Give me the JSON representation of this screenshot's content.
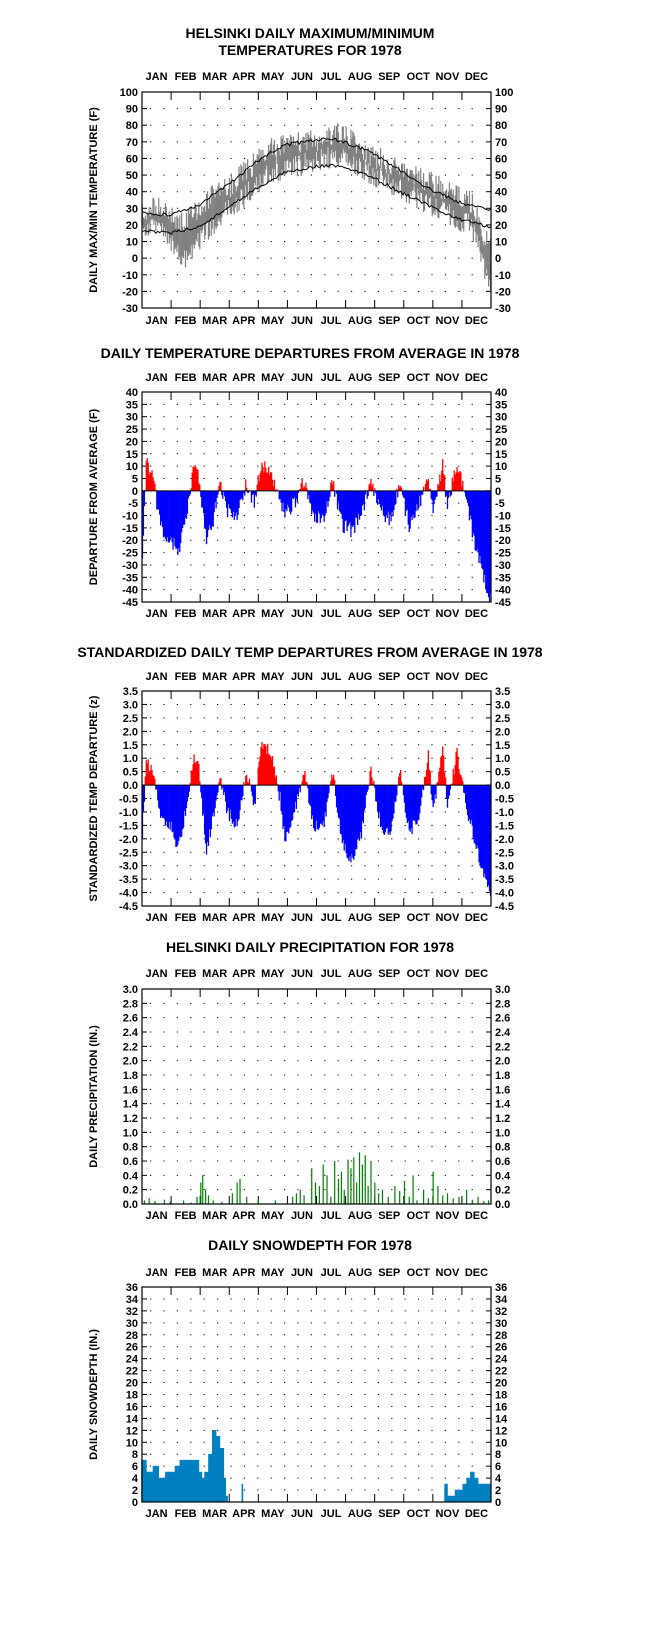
{
  "chart_data": [
    {
      "type": "line",
      "title": "HELSINKI DAILY MAXIMUM/MINIMUM TEMPERATURES FOR 1978",
      "title_lines": [
        "HELSINKI DAILY MAXIMUM/MINIMUM",
        "TEMPERATURES FOR 1978"
      ],
      "ylabel": "DAILY MAX/MIN TEMPERATURE (F)",
      "months": [
        "JAN",
        "FEB",
        "MAR",
        "APR",
        "MAY",
        "JUN",
        "JUL",
        "AUG",
        "SEP",
        "OCT",
        "NOV",
        "DEC"
      ],
      "ylim": [
        -30,
        100
      ],
      "yticks": [
        100,
        90,
        80,
        70,
        60,
        50,
        40,
        30,
        20,
        10,
        0,
        -10,
        -20,
        -30
      ],
      "grid": true,
      "series": [
        {
          "values_note": "",
          "color": "#808080",
          "keypoints_x": [
            1,
            20,
            32,
            45,
            60,
            75,
            90,
            105,
            120,
            135,
            150,
            165,
            180,
            195,
            210,
            225,
            240,
            255,
            270,
            285,
            300,
            315,
            330,
            345,
            355,
            365
          ],
          "max": [
            28,
            32,
            25,
            20,
            30,
            38,
            42,
            50,
            58,
            66,
            68,
            70,
            70,
            72,
            76,
            68,
            62,
            58,
            54,
            50,
            46,
            42,
            38,
            34,
            18,
            5
          ],
          "min": [
            18,
            20,
            8,
            0,
            10,
            20,
            28,
            36,
            44,
            52,
            54,
            56,
            58,
            60,
            62,
            56,
            50,
            46,
            42,
            38,
            32,
            28,
            24,
            20,
            0,
            -20
          ]
        },
        {
          "name": "",
          "color": "#000000",
          "normal_x": [
            1,
            30,
            60,
            90,
            120,
            150,
            180,
            200,
            210,
            240,
            270,
            300,
            330,
            365
          ],
          "normal_max": [
            27,
            26,
            32,
            44,
            58,
            68,
            71,
            72,
            70,
            64,
            53,
            42,
            34,
            29
          ],
          "normal_min": [
            17,
            15,
            19,
            30,
            42,
            52,
            55,
            56,
            55,
            49,
            40,
            32,
            24,
            19
          ]
        }
      ]
    },
    {
      "type": "bar",
      "title": "DAILY TEMPERATURE DEPARTURES FROM AVERAGE IN 1978",
      "ylabel": "DEPARTURE FROM AVERAGE (F)",
      "months": [
        "JAN",
        "FEB",
        "MAR",
        "APR",
        "MAY",
        "JUN",
        "JUL",
        "AUG",
        "SEP",
        "OCT",
        "NOV",
        "DEC"
      ],
      "ylim": [
        -45,
        40
      ],
      "yticks": [
        40,
        35,
        30,
        25,
        20,
        15,
        10,
        5,
        0,
        -5,
        -10,
        -15,
        -20,
        -25,
        -30,
        -35,
        -40,
        -45
      ],
      "grid": true,
      "positive_color": "#ff0000",
      "negative_color": "#0000ff",
      "keypoints_x": [
        1,
        5,
        12,
        20,
        32,
        38,
        45,
        55,
        60,
        68,
        75,
        82,
        90,
        100,
        110,
        118,
        125,
        135,
        145,
        150,
        160,
        170,
        180,
        190,
        200,
        210,
        220,
        230,
        240,
        250,
        260,
        270,
        280,
        290,
        300,
        305,
        315,
        320,
        330,
        340,
        348,
        355,
        360,
        365
      ],
      "keypoints_y": [
        -26,
        13,
        5,
        -15,
        -20,
        -25,
        -15,
        10,
        6,
        -20,
        -12,
        4,
        -8,
        -10,
        3,
        -5,
        10,
        8,
        -4,
        -10,
        -5,
        4,
        -10,
        -12,
        4,
        -14,
        -16,
        -10,
        4,
        -8,
        -12,
        3,
        -14,
        -6,
        6,
        -8,
        10,
        -6,
        12,
        -5,
        -20,
        -30,
        -38,
        -44
      ]
    },
    {
      "type": "bar",
      "title": "STANDARDIZED DAILY TEMP DEPARTURES FROM AVERAGE IN 1978",
      "ylabel": "STANDARDIZED TEMP DEPARTURE (z)",
      "months": [
        "JAN",
        "FEB",
        "MAR",
        "APR",
        "MAY",
        "JUN",
        "JUL",
        "AUG",
        "SEP",
        "OCT",
        "NOV",
        "DEC"
      ],
      "ylim": [
        -4.5,
        3.5
      ],
      "yticks": [
        "3.5",
        "3.0",
        "2.5",
        "2.0",
        "1.5",
        "1.0",
        "0.5",
        "0.0",
        "-0.5",
        "-1.0",
        "-1.5",
        "-2.0",
        "-2.5",
        "-3.0",
        "-3.5",
        "-4.0",
        "-4.5"
      ],
      "grid": true,
      "positive_color": "#ff0000",
      "negative_color": "#0000ff",
      "keypoints_x": [
        1,
        5,
        12,
        20,
        32,
        38,
        45,
        55,
        60,
        68,
        75,
        82,
        90,
        100,
        110,
        118,
        125,
        135,
        145,
        150,
        160,
        170,
        180,
        190,
        200,
        210,
        220,
        230,
        240,
        250,
        260,
        270,
        280,
        290,
        300,
        305,
        315,
        320,
        330,
        340,
        348,
        355,
        360,
        365
      ],
      "keypoints_y": [
        -1.8,
        1.0,
        0.5,
        -1.2,
        -1.6,
        -2.4,
        -1.2,
        1.0,
        0.6,
        -2.4,
        -1.2,
        0.4,
        -1.0,
        -1.5,
        0.5,
        -0.8,
        1.5,
        1.2,
        -0.5,
        -2.0,
        -1.0,
        0.6,
        -1.5,
        -1.6,
        0.5,
        -2.2,
        -2.8,
        -1.8,
        0.6,
        -1.4,
        -2.0,
        0.6,
        -1.8,
        -1.2,
        1.2,
        -1.0,
        1.3,
        -0.8,
        1.2,
        -0.8,
        -2.0,
        -3.0,
        -3.6,
        -4.2
      ]
    },
    {
      "type": "bar",
      "title": "HELSINKI DAILY PRECIPITATION FOR 1978",
      "ylabel": "DAILY PRECIPITATION (IN.)",
      "months": [
        "JAN",
        "FEB",
        "MAR",
        "APR",
        "MAY",
        "JUN",
        "JUL",
        "AUG",
        "SEP",
        "OCT",
        "NOV",
        "DEC"
      ],
      "ylim": [
        0,
        3.0
      ],
      "yticks": [
        "3.0",
        "2.8",
        "2.6",
        "2.4",
        "2.2",
        "2.0",
        "1.8",
        "1.6",
        "1.4",
        "1.2",
        "1.0",
        "0.8",
        "0.6",
        "0.4",
        "0.2",
        "0.0"
      ],
      "grid": true,
      "color": "#008000",
      "wet_days": [
        [
          3,
          0.05
        ],
        [
          8,
          0.08
        ],
        [
          14,
          0.04
        ],
        [
          24,
          0.06
        ],
        [
          30,
          0.03
        ],
        [
          44,
          0.05
        ],
        [
          52,
          0.02
        ],
        [
          58,
          0.1
        ],
        [
          62,
          0.3
        ],
        [
          64,
          0.4
        ],
        [
          67,
          0.2
        ],
        [
          70,
          0.12
        ],
        [
          75,
          0.05
        ],
        [
          84,
          0.03
        ],
        [
          95,
          0.15
        ],
        [
          100,
          0.3
        ],
        [
          103,
          0.35
        ],
        [
          110,
          0.1
        ],
        [
          122,
          0.06
        ],
        [
          140,
          0.05
        ],
        [
          158,
          0.1
        ],
        [
          162,
          0.15
        ],
        [
          166,
          0.2
        ],
        [
          170,
          0.12
        ],
        [
          178,
          0.5
        ],
        [
          182,
          0.3
        ],
        [
          186,
          0.25
        ],
        [
          190,
          0.55
        ],
        [
          194,
          0.4
        ],
        [
          198,
          0.1
        ],
        [
          202,
          0.6
        ],
        [
          206,
          0.35
        ],
        [
          209,
          0.45
        ],
        [
          212,
          0.2
        ],
        [
          216,
          0.62
        ],
        [
          219,
          0.5
        ],
        [
          222,
          0.65
        ],
        [
          225,
          0.3
        ],
        [
          228,
          0.72
        ],
        [
          231,
          0.55
        ],
        [
          234,
          0.68
        ],
        [
          237,
          0.25
        ],
        [
          240,
          0.6
        ],
        [
          244,
          0.3
        ],
        [
          248,
          0.15
        ],
        [
          252,
          0.2
        ],
        [
          258,
          0.1
        ],
        [
          265,
          0.25
        ],
        [
          270,
          0.18
        ],
        [
          275,
          0.32
        ],
        [
          280,
          0.1
        ],
        [
          284,
          0.4
        ],
        [
          288,
          0.05
        ],
        [
          295,
          0.2
        ],
        [
          300,
          0.08
        ],
        [
          305,
          0.45
        ],
        [
          310,
          0.25
        ],
        [
          315,
          0.12
        ],
        [
          320,
          0.15
        ],
        [
          326,
          0.08
        ],
        [
          332,
          0.1
        ],
        [
          340,
          0.2
        ],
        [
          346,
          0.06
        ],
        [
          352,
          0.1
        ],
        [
          358,
          0.04
        ],
        [
          363,
          0.05
        ]
      ]
    },
    {
      "type": "area",
      "title": "DAILY SNOWDEPTH FOR 1978",
      "ylabel": "DAILY SNOWDEPTH (IN.)",
      "months": [
        "JAN",
        "FEB",
        "MAR",
        "APR",
        "MAY",
        "JUN",
        "JUL",
        "AUG",
        "SEP",
        "OCT",
        "NOV",
        "DEC"
      ],
      "ylim": [
        0,
        36
      ],
      "yticks": [
        36,
        34,
        32,
        30,
        28,
        26,
        24,
        22,
        20,
        18,
        16,
        14,
        12,
        10,
        8,
        6,
        4,
        2,
        0
      ],
      "grid": true,
      "color": "#0080c0",
      "steps": [
        [
          0,
          7
        ],
        [
          5,
          5
        ],
        [
          12,
          6
        ],
        [
          18,
          4
        ],
        [
          25,
          5
        ],
        [
          32,
          5
        ],
        [
          35,
          6
        ],
        [
          40,
          7
        ],
        [
          55,
          7
        ],
        [
          60,
          5
        ],
        [
          63,
          4
        ],
        [
          66,
          5
        ],
        [
          70,
          8
        ],
        [
          74,
          12
        ],
        [
          78,
          11
        ],
        [
          82,
          9
        ],
        [
          86,
          4
        ],
        [
          88,
          1
        ],
        [
          90,
          0
        ],
        [
          104,
          0
        ],
        [
          105,
          3
        ],
        [
          106,
          0
        ],
        [
          316,
          0
        ],
        [
          317,
          3
        ],
        [
          320,
          1
        ],
        [
          328,
          2
        ],
        [
          336,
          3
        ],
        [
          340,
          4
        ],
        [
          344,
          5
        ],
        [
          348,
          4
        ],
        [
          352,
          3
        ],
        [
          362,
          3
        ],
        [
          365,
          0
        ]
      ]
    }
  ]
}
